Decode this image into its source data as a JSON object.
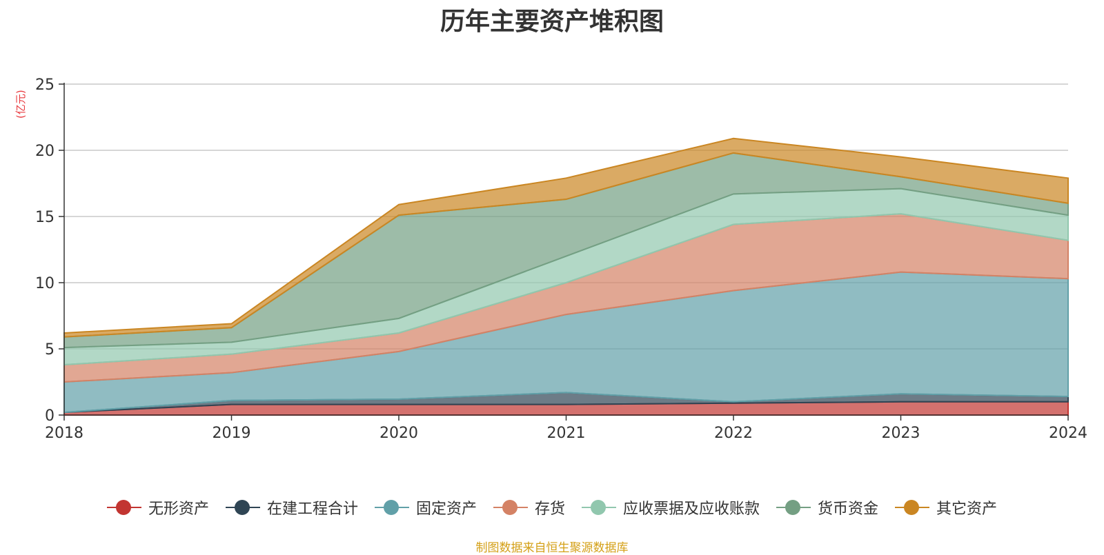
{
  "chart_data": {
    "type": "area",
    "title": "历年主要资产堆积图",
    "unit": "(亿元)",
    "source": "制图数据来自恒生聚源数据库",
    "x": [
      "2018",
      "2019",
      "2020",
      "2021",
      "2022",
      "2023",
      "2024"
    ],
    "ylim": [
      0,
      25
    ],
    "yticks": [
      "0",
      "5",
      "10",
      "15",
      "20",
      "25"
    ],
    "stacked": true,
    "grid": true,
    "legend_position": "bottom",
    "series": [
      {
        "name": "无形资产",
        "color": "#c23531",
        "values": [
          0.2,
          0.8,
          0.8,
          0.8,
          0.9,
          1.0,
          1.0
        ]
      },
      {
        "name": "在建工程合计",
        "color": "#2f4554",
        "values": [
          0.0,
          0.3,
          0.4,
          0.9,
          0.1,
          0.6,
          0.4
        ]
      },
      {
        "name": "固定资产",
        "color": "#61a0a8",
        "values": [
          2.3,
          2.1,
          3.6,
          5.9,
          8.4,
          9.2,
          8.9
        ]
      },
      {
        "name": "存货",
        "color": "#d48265",
        "values": [
          1.3,
          1.4,
          1.4,
          2.4,
          5.0,
          4.4,
          2.9
        ]
      },
      {
        "name": "应收票据及应收账款",
        "color": "#91c7ae",
        "values": [
          1.3,
          0.9,
          1.1,
          2.0,
          2.3,
          1.9,
          1.9
        ]
      },
      {
        "name": "货币资金",
        "color": "#749f83",
        "values": [
          0.8,
          1.1,
          7.8,
          4.3,
          3.1,
          0.9,
          0.9
        ]
      },
      {
        "name": "其它资产",
        "color": "#ca8622",
        "values": [
          0.3,
          0.3,
          0.8,
          1.6,
          1.1,
          1.5,
          1.9
        ]
      }
    ]
  }
}
